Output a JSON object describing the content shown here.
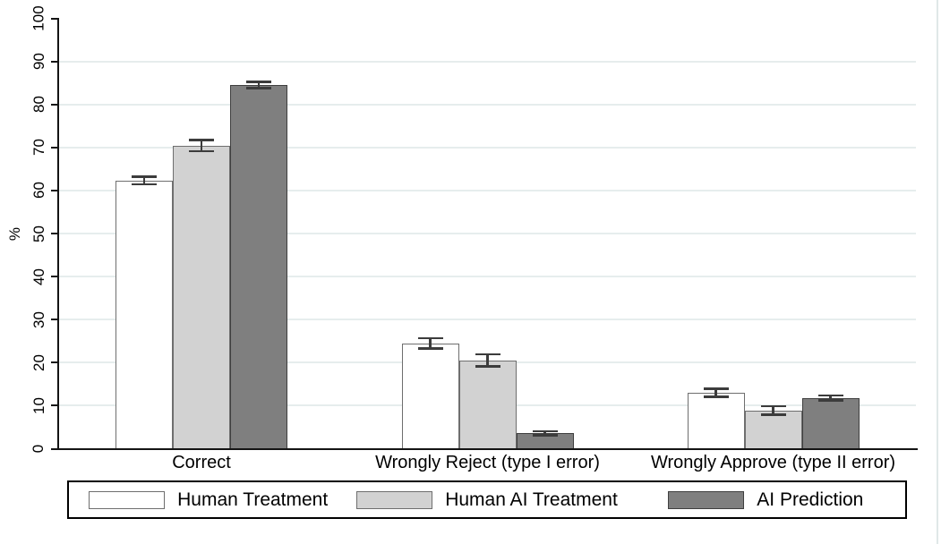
{
  "chart_data": {
    "type": "bar",
    "title": "",
    "xlabel": "",
    "ylabel": "%",
    "ylim": [
      0,
      100
    ],
    "yticks": [
      0,
      10,
      20,
      30,
      40,
      50,
      60,
      70,
      80,
      90,
      100
    ],
    "grid": "horizontal light gridlines at 10 through 90",
    "legend_position": "bottom",
    "error_bars": true,
    "categories": [
      "Correct",
      "Wrongly Reject (type I error)",
      "Wrongly Approve (type II error)"
    ],
    "series": [
      {
        "name": "Human Treatment",
        "fill": "#ffffff",
        "border": "#6e6e6e",
        "values": [
          62.3,
          24.5,
          13.0
        ],
        "errors": [
          0.9,
          1.2,
          0.9
        ]
      },
      {
        "name": "Human AI Treatment",
        "fill": "#d2d2d2",
        "border": "#6e6e6e",
        "values": [
          70.4,
          20.5,
          8.9
        ],
        "errors": [
          1.3,
          1.4,
          1.0
        ]
      },
      {
        "name": "AI Prediction",
        "fill": "#7f7f7f",
        "border": "#3f3f3f",
        "values": [
          84.5,
          3.6,
          11.8
        ],
        "errors": [
          0.7,
          0.5,
          0.6
        ]
      }
    ],
    "colors": {
      "axis": "#141414",
      "gridline": "#e6eded",
      "error_bar": "#3c3c3c",
      "background": "#ffffff"
    }
  }
}
